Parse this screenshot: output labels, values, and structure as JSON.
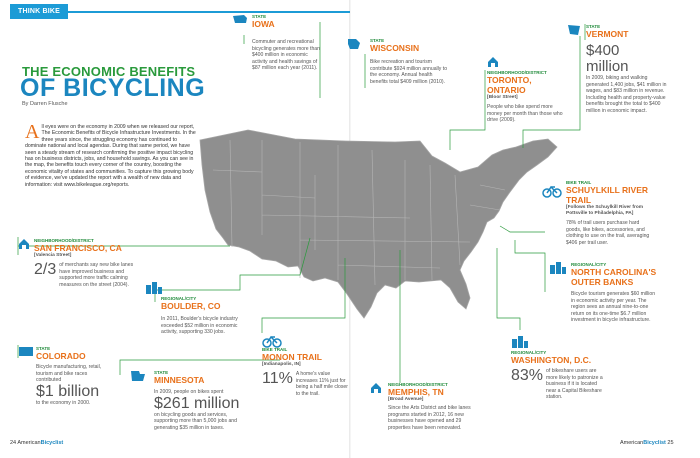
{
  "tab": {
    "label": "THINK BIKE"
  },
  "title": {
    "line1": "THE ECONOMIC BENEFITS",
    "line2": "OF BICYCLING",
    "byline": "By Darren Flusche"
  },
  "intro": {
    "dropcap": "A",
    "text": "ll eyes were on the economy in 2009 when we released our report, The Economic Benefits of Bicycle Infrastructure Investments. In the three years since, the struggling economy has continued to dominate national and local agendas. During that same period, we have seen a steady stream of research confirming the positive impact bicycling has on business districts, jobs, and household savings. As you can see in the map, the benefits touch every corner of the country, boosting the economic vitality of states and communities. To capture this growing body of evidence, we've updated the report with a wealth of new data and information: visit www.bikeleague.org/reports."
  },
  "callouts": {
    "iowa": {
      "category": "STATE",
      "place": "IOWA",
      "icon": "state-icon",
      "body": "Commuter and recreational bicycling generates more than $400 million in economic activity and health savings of $87 million each year (2011)."
    },
    "wisconsin": {
      "category": "STATE",
      "place": "WISCONSIN",
      "icon": "state-icon",
      "body": "Bike recreation and tourism contribute $924 million annually to the economy. Annual health benefits total $409 million (2010)."
    },
    "vermont": {
      "category": "STATE",
      "place": "VERMONT",
      "icon": "state-icon",
      "big": "$400 million",
      "body": "In 2009, biking and walking generated 1,400 jobs, $41 million in wages, and $83 million in revenue. Including health and property-value benefits brought the total to $400 million in economic impact."
    },
    "toronto": {
      "category": "NEIGHBORHOOD/DISTRICT",
      "place": "TORONTO, ONTARIO",
      "sub": "[Bloor Street]",
      "icon": "house-icon",
      "body": "People who bike spend more money per month than those who drive (2009)."
    },
    "schuylkill": {
      "category": "BIKE TRAIL",
      "place": "SCHUYLKILL RIVER TRAIL",
      "sub": "[Follows the Schuylkill River from Pottsville to Philadelphia, PA]",
      "icon": "bicycle-icon",
      "body": "78% of trail users purchase hard goods, like bikes, accessories, and clothing to use on the trail, averaging $406 per trail user."
    },
    "outerbanks": {
      "category": "REGIONAL/CITY",
      "place": "NORTH CAROLINA'S OUTER BANKS",
      "icon": "city-icon",
      "body": "Bicycle tourism generates $60 million in economic activity per year. The region sees an annual nine-to-one return on its one-time $6.7 million investment in bicycle infrastructure."
    },
    "sanfrancisco": {
      "category": "NEIGHBORHOOD/DISTRICT",
      "place": "SAN FRANCISCO, CA",
      "sub": "[Valencia Street]",
      "icon": "house-icon",
      "big": "2/3",
      "big_text": "of merchants say new bike lanes have improved business and supported more traffic calming measures on the street (2004)."
    },
    "boulder": {
      "category": "REGIONAL/CITY",
      "place": "BOULDER, CO",
      "icon": "city-icon",
      "body": "In 2011, Boulder's bicycle industry exceeded $52 million in economic activity, supporting 330 jobs."
    },
    "colorado": {
      "category": "STATE",
      "place": "COLORADO",
      "icon": "state-icon",
      "body": "Bicycle manufacturing, retail, tourism and bike races contributed",
      "big": "$1 billion",
      "tail": "to the economy in 2000."
    },
    "minnesota": {
      "category": "STATE",
      "place": "MINNESOTA",
      "icon": "state-icon",
      "body": "In 2009, people on bikes spent",
      "big": "$261 million",
      "tail": "on bicycling goods and services, supporting more than 5,000 jobs and generating $35 million in taxes."
    },
    "monon": {
      "category": "BIKE TRAIL",
      "place": "MONON TRAIL",
      "sub": "[Indianapolis, IN]",
      "icon": "bicycle-icon",
      "big": "11%",
      "big_text": "A home's value increases 11% just for being a half mile closer to the trail."
    },
    "memphis": {
      "category": "NEIGHBORHOOD/DISTRICT",
      "place": "MEMPHIS, TN",
      "sub": "[Broad Avenue]",
      "icon": "house-icon",
      "body": "Since the Arts District and bike lanes programs started in 2012, 16 new businesses have opened and 29 properties have been renovated."
    },
    "washington": {
      "category": "REGIONAL/CITY",
      "place": "WASHINGTON, D.C.",
      "icon": "city-icon",
      "big": "83%",
      "big_text": "of bikeshare users are more likely to patronize a business if it is located near a Capital Bikeshare station."
    }
  },
  "footer": {
    "left_num": "24",
    "left_brand_a": "American",
    "left_brand_b": "Bicyclist",
    "right_brand_a": "American",
    "right_brand_b": "Bicyclist",
    "right_num": "25"
  },
  "colors": {
    "blue": "#1b86bf",
    "green": "#2a9a3c",
    "orange": "#e8711b",
    "map": "#8f8f8f"
  }
}
